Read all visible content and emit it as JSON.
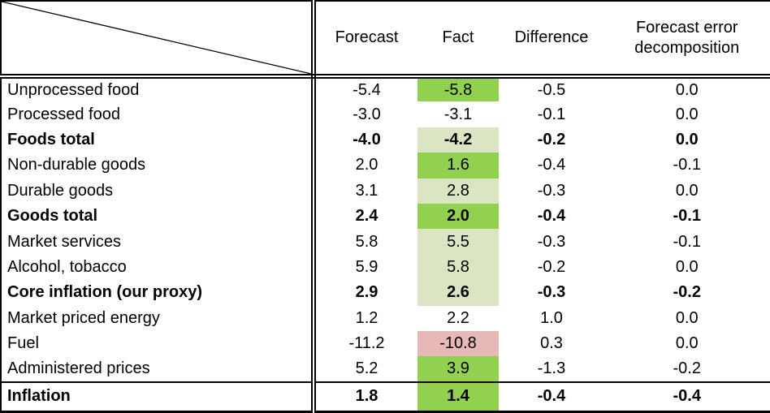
{
  "chart_data": {
    "type": "table",
    "corner_cell": "",
    "columns": [
      "Forecast",
      "Fact",
      "Difference",
      "Forecast error decomposition"
    ],
    "fact_column_highlight_legend": {
      "green": "#92D050",
      "light": "#DBE5C4",
      "pink": "#E6B8B7",
      "none": "transparent"
    },
    "rows": [
      {
        "label": "Unprocessed food",
        "bold": false,
        "rule_above": false,
        "forecast": "-5.4",
        "fact": "-5.8",
        "fact_bg": "green",
        "difference": "-0.5",
        "decomposition": "0.0"
      },
      {
        "label": "Processed food",
        "bold": false,
        "rule_above": false,
        "forecast": "-3.0",
        "fact": "-3.1",
        "fact_bg": "none",
        "difference": "-0.1",
        "decomposition": "0.0"
      },
      {
        "label": "Foods total",
        "bold": true,
        "rule_above": false,
        "forecast": "-4.0",
        "fact": "-4.2",
        "fact_bg": "light",
        "difference": "-0.2",
        "decomposition": "0.0"
      },
      {
        "label": "Non-durable goods",
        "bold": false,
        "rule_above": false,
        "forecast": "2.0",
        "fact": "1.6",
        "fact_bg": "green",
        "difference": "-0.4",
        "decomposition": "-0.1"
      },
      {
        "label": "Durable goods",
        "bold": false,
        "rule_above": false,
        "forecast": "3.1",
        "fact": "2.8",
        "fact_bg": "light",
        "difference": "-0.3",
        "decomposition": "0.0"
      },
      {
        "label": "Goods total",
        "bold": true,
        "rule_above": false,
        "forecast": "2.4",
        "fact": "2.0",
        "fact_bg": "green",
        "difference": "-0.4",
        "decomposition": "-0.1"
      },
      {
        "label": "Market services",
        "bold": false,
        "rule_above": false,
        "forecast": "5.8",
        "fact": "5.5",
        "fact_bg": "light",
        "difference": "-0.3",
        "decomposition": "-0.1"
      },
      {
        "label": "Alcohol, tobacco",
        "bold": false,
        "rule_above": false,
        "forecast": "5.9",
        "fact": "5.8",
        "fact_bg": "light",
        "difference": "-0.2",
        "decomposition": "0.0"
      },
      {
        "label": "Core inflation (our proxy)",
        "bold": true,
        "rule_above": false,
        "forecast": "2.9",
        "fact": "2.6",
        "fact_bg": "light",
        "difference": "-0.3",
        "decomposition": "-0.2"
      },
      {
        "label": "Market priced energy",
        "bold": false,
        "rule_above": false,
        "forecast": "1.2",
        "fact": "2.2",
        "fact_bg": "none",
        "difference": "1.0",
        "decomposition": "0.0"
      },
      {
        "label": "Fuel",
        "bold": false,
        "rule_above": false,
        "forecast": "-11.2",
        "fact": "-10.8",
        "fact_bg": "pink",
        "difference": "0.3",
        "decomposition": "0.0"
      },
      {
        "label": "Administered prices",
        "bold": false,
        "rule_above": false,
        "forecast": "5.2",
        "fact": "3.9",
        "fact_bg": "green",
        "difference": "-1.3",
        "decomposition": "-0.2"
      },
      {
        "label": "Inflation",
        "bold": true,
        "rule_above": true,
        "forecast": "1.8",
        "fact": "1.4",
        "fact_bg": "green",
        "difference": "-0.4",
        "decomposition": "-0.4"
      }
    ]
  },
  "colors": {
    "fact_highlight_green": "#92D050",
    "fact_highlight_light_green": "#DBE5C4",
    "fact_highlight_pink": "#E6B8B7",
    "border": "#000000",
    "background": "#FFFFFF"
  }
}
